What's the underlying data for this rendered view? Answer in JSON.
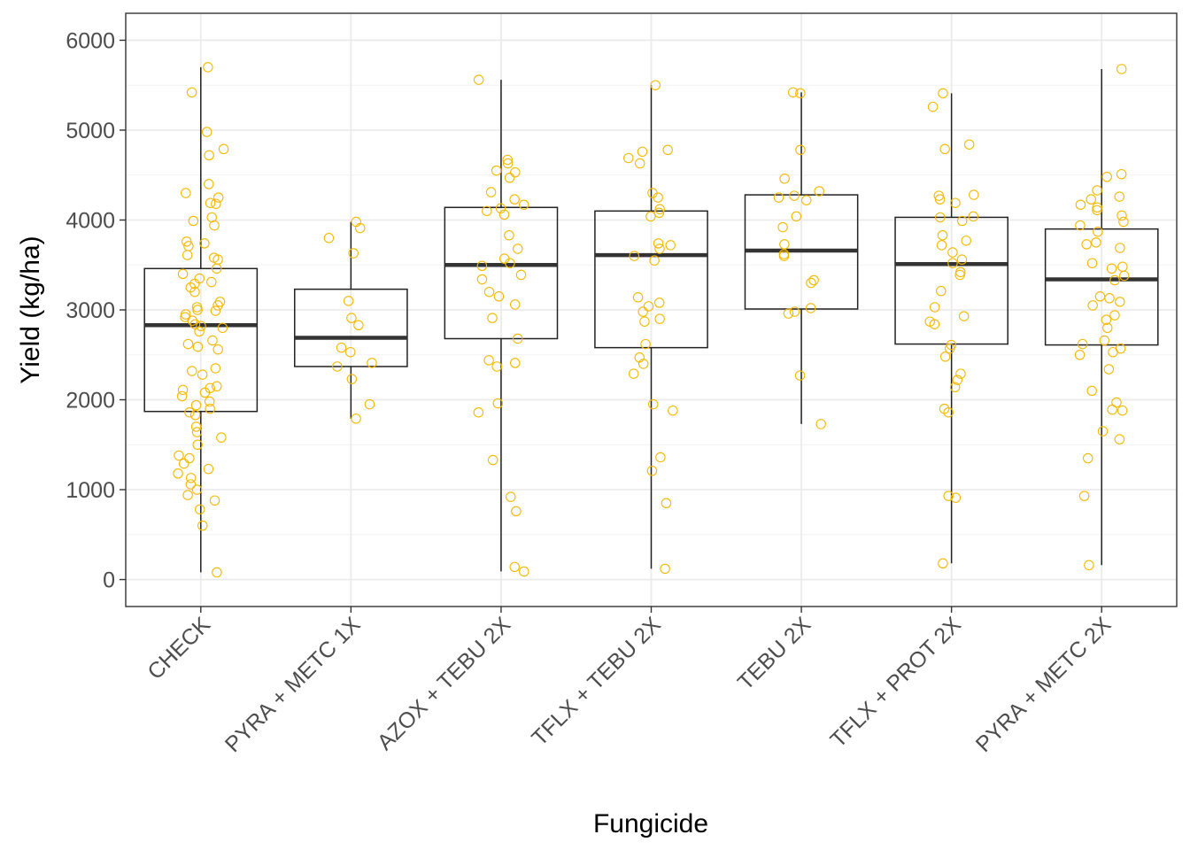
{
  "chart_data": {
    "type": "box",
    "xlabel": "Fungicide",
    "ylabel": "Yield (kg/ha)",
    "ylim": [
      -300,
      6300
    ],
    "yticks": [
      0,
      1000,
      2000,
      3000,
      4000,
      5000,
      6000
    ],
    "grid": true,
    "point_color": "#F5B800",
    "categories": [
      "CHECK",
      "PYRA + METC 1X",
      "AZOX + TEBU 2X",
      "TFLX + TEBU 2X",
      "TEBU 2X",
      "TFLX + PROT 2X",
      "PYRA + METC 2X"
    ],
    "boxes": [
      {
        "q1": 1870,
        "median": 2830,
        "q3": 3460,
        "whisker_low": 80,
        "whisker_high": 5700
      },
      {
        "q1": 2370,
        "median": 2690,
        "q3": 3230,
        "whisker_low": 1790,
        "whisker_high": 3980
      },
      {
        "q1": 2680,
        "median": 3500,
        "q3": 4140,
        "whisker_low": 90,
        "whisker_high": 5560
      },
      {
        "q1": 2580,
        "median": 3610,
        "q3": 4100,
        "whisker_low": 120,
        "whisker_high": 5500
      },
      {
        "q1": 3010,
        "median": 3660,
        "q3": 4280,
        "whisker_low": 1730,
        "whisker_high": 5420
      },
      {
        "q1": 2620,
        "median": 3510,
        "q3": 4030,
        "whisker_low": 180,
        "whisker_high": 5410
      },
      {
        "q1": 2610,
        "median": 3340,
        "q3": 3900,
        "whisker_low": 160,
        "whisker_high": 5680
      }
    ],
    "points": [
      [
        5700,
        5420,
        4980,
        4790,
        4720,
        4400,
        4300,
        4250,
        4190,
        4180,
        4030,
        3990,
        3940,
        3760,
        3740,
        3710,
        3610,
        3580,
        3560,
        3460,
        3400,
        3350,
        3310,
        3290,
        3250,
        3200,
        3090,
        3050,
        3030,
        3000,
        2990,
        2950,
        2920,
        2880,
        2840,
        2820,
        2800,
        2760,
        2660,
        2620,
        2590,
        2560,
        2350,
        2320,
        2280,
        2150,
        2130,
        2110,
        2080,
        2040,
        1980,
        1940,
        1900,
        1860,
        1830,
        1700,
        1640,
        1580,
        1500,
        1380,
        1350,
        1290,
        1230,
        1180,
        1130,
        1060,
        1000,
        940,
        880,
        780,
        600,
        80
      ],
      [
        3980,
        3910,
        3800,
        3630,
        3100,
        2910,
        2830,
        2580,
        2530,
        2410,
        2370,
        2230,
        1950,
        1790
      ],
      [
        5560,
        4670,
        4630,
        4550,
        4530,
        4470,
        4310,
        4230,
        4170,
        4130,
        4100,
        4060,
        3830,
        3680,
        3570,
        3520,
        3490,
        3390,
        3340,
        3200,
        3150,
        3060,
        2910,
        2680,
        2440,
        2410,
        2370,
        1960,
        1860,
        1330,
        920,
        760,
        140,
        90
      ],
      [
        5500,
        4780,
        4760,
        4690,
        4630,
        4300,
        4250,
        4120,
        4080,
        4040,
        3740,
        3720,
        3680,
        3600,
        3550,
        3140,
        3080,
        3040,
        2980,
        2900,
        2870,
        2620,
        2470,
        2400,
        2290,
        1950,
        1880,
        1360,
        1210,
        850,
        120
      ],
      [
        5420,
        5410,
        4780,
        4460,
        4320,
        4270,
        4250,
        4220,
        4040,
        3920,
        3730,
        3620,
        3600,
        3330,
        3300,
        3020,
        2980,
        2960,
        2270,
        1730
      ],
      [
        5410,
        5260,
        4840,
        4790,
        4280,
        4270,
        4230,
        4190,
        4040,
        4030,
        3990,
        3830,
        3770,
        3720,
        3640,
        3560,
        3520,
        3420,
        3390,
        3210,
        3030,
        2930,
        2870,
        2840,
        2610,
        2570,
        2480,
        2290,
        2220,
        2140,
        1900,
        1860,
        930,
        910,
        180
      ],
      [
        5680,
        4510,
        4480,
        4330,
        4260,
        4230,
        4170,
        4140,
        4110,
        4050,
        3980,
        3940,
        3870,
        3750,
        3730,
        3690,
        3520,
        3480,
        3460,
        3380,
        3330,
        3150,
        3130,
        3090,
        3050,
        2940,
        2890,
        2800,
        2660,
        2620,
        2570,
        2530,
        2500,
        2340,
        2100,
        1970,
        1890,
        1880,
        1650,
        1560,
        1350,
        930,
        160
      ]
    ]
  }
}
